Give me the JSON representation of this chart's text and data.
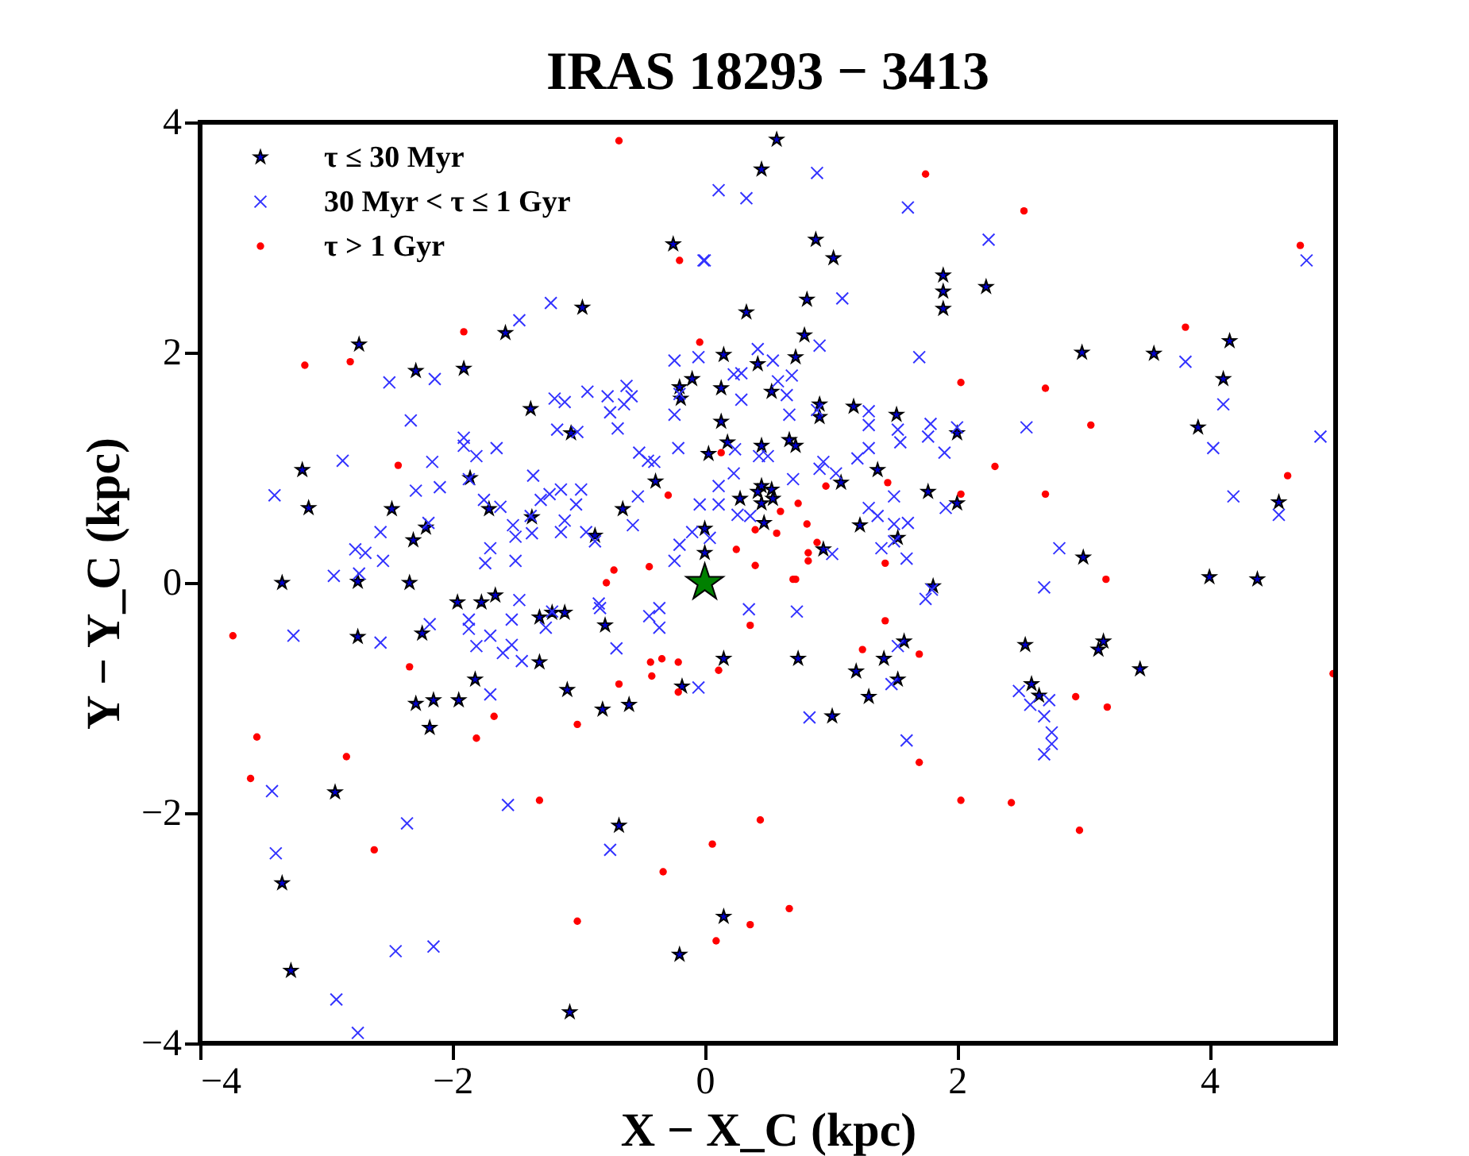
{
  "chart_data": {
    "type": "scatter",
    "title": "IRAS 18293 − 3413",
    "xlabel": "X − X_C (kpc)",
    "ylabel": "Y − Y_C (kpc)",
    "xlim": [
      -4,
      5
    ],
    "ylim": [
      -4,
      4
    ],
    "xticks": [
      {
        "value": -4,
        "label": "−4"
      },
      {
        "value": -2,
        "label": "−2"
      },
      0,
      2,
      4
    ],
    "yticks": [
      {
        "value": -4,
        "label": "−4"
      },
      {
        "value": -2,
        "label": "−2"
      },
      0,
      2,
      4
    ],
    "grid": false,
    "legend": "top left",
    "series": [
      {
        "name": "τ ≤ 30 Myr",
        "color": "#0000cc",
        "marker": "star",
        "x": [
          0.57,
          0.45,
          -0.25,
          0.88,
          1.02,
          0.81,
          0.79,
          1.89,
          1.89,
          1.89,
          2.23,
          2.99,
          3.56,
          4.16,
          4.11,
          3.91,
          4.55,
          4.0,
          4.38,
          -2.74,
          -1.58,
          -1.91,
          -2.29,
          -3.19,
          -3.14,
          -2.48,
          -2.21,
          -2.31,
          -0.97,
          -1.38,
          -1.06,
          -1.86,
          -1.71,
          -1.37,
          -0.87,
          -0.65,
          -0.39,
          -0.2,
          -0.1,
          -0.19,
          0.03,
          0.18,
          0.15,
          0.33,
          0.45,
          0.91,
          0.94,
          1.37,
          1.53,
          2.0,
          1.81,
          3.0,
          3.16,
          3.12,
          3.45,
          -3.35,
          -2.75,
          -2.34,
          -1.77,
          -1.96,
          -1.66,
          -1.21,
          -1.31,
          -1.11,
          -0.79,
          -2.24,
          -2.75,
          -1.09,
          -1.31,
          -1.82,
          -1.95,
          -2.18,
          -2.15,
          -2.29,
          -0.81,
          -0.6,
          -0.18,
          0.15,
          0.74,
          1.01,
          1.2,
          1.3,
          1.42,
          1.58,
          1.53,
          2.54,
          2.59,
          2.65,
          -2.93,
          -3.35,
          -3.28,
          -0.68,
          -0.2,
          0.15,
          -1.07,
          0.45,
          0.53,
          0.42,
          0.28,
          0.45,
          0.54,
          0.47,
          0.0,
          0.0,
          0.13,
          0.13,
          0.42,
          0.72,
          0.53,
          0.91,
          1.18,
          1.52,
          0.67,
          0.72,
          1.08,
          1.23,
          1.77,
          2.0
        ],
        "values": [
          3.85,
          3.59,
          2.94,
          2.98,
          2.82,
          2.46,
          2.15,
          2.67,
          2.53,
          2.38,
          2.57,
          2.0,
          1.99,
          2.1,
          1.77,
          1.35,
          0.7,
          0.05,
          0.03,
          2.07,
          2.17,
          1.86,
          1.84,
          0.98,
          0.65,
          0.64,
          0.48,
          0.37,
          2.39,
          1.51,
          1.3,
          0.91,
          0.64,
          0.57,
          0.41,
          0.64,
          0.88,
          1.7,
          1.77,
          1.6,
          1.12,
          1.22,
          1.98,
          2.35,
          1.19,
          1.44,
          0.29,
          0.98,
          0.39,
          1.3,
          -0.03,
          0.22,
          -0.51,
          -0.58,
          -0.75,
          0.0,
          0.01,
          0.0,
          -0.17,
          -0.17,
          -0.11,
          -0.26,
          -0.3,
          -0.26,
          -0.37,
          -0.44,
          -0.47,
          -0.93,
          -0.69,
          -0.84,
          -1.02,
          -1.26,
          -1.02,
          -1.05,
          -1.1,
          -1.06,
          -0.9,
          -0.66,
          -0.66,
          -1.16,
          -0.77,
          -0.99,
          -0.66,
          -0.51,
          -0.84,
          -0.54,
          -0.88,
          -0.98,
          -1.82,
          -2.61,
          -3.37,
          -2.11,
          -3.23,
          -2.9,
          -3.73,
          0.84,
          0.81,
          0.79,
          0.73,
          0.69,
          0.73,
          0.52,
          0.47,
          0.26,
          1.69,
          1.4,
          1.9,
          1.96,
          1.66,
          1.55,
          1.53,
          1.46,
          1.24,
          1.19,
          0.87,
          0.5,
          0.79,
          0.69
        ]
      },
      {
        "name": "30 Myr < τ ≤ 1 Gyr",
        "color": "#3333ff",
        "marker": "cross",
        "x": [
          0.11,
          0.33,
          0.89,
          1.61,
          2.25,
          0.0,
          1.09,
          0.91,
          1.7,
          0.42,
          0.54,
          0.23,
          0.29,
          0.58,
          0.69,
          0.29,
          0.65,
          0.67,
          0.89,
          1.3,
          1.3,
          1.53,
          1.55,
          1.79,
          1.77,
          2.0,
          1.9,
          2.55,
          0.24,
          0.43,
          0.5,
          0.91,
          0.94,
          0.7,
          1.21,
          1.3,
          1.04,
          0.23,
          0.11,
          0.26,
          0.36,
          0.11,
          0.04,
          1.3,
          1.37,
          1.5,
          1.5,
          1.61,
          1.4,
          1.5,
          1.6,
          1.01,
          1.91,
          2.81,
          3.81,
          4.11,
          4.03,
          4.88,
          4.19,
          4.55,
          4.77,
          -3.41,
          -2.87,
          -2.5,
          -2.33,
          -2.14,
          -1.47,
          -1.22,
          -2.16,
          -2.29,
          -2.1,
          -2.19,
          -2.57,
          -2.77,
          -2.69,
          -2.55,
          -2.94,
          -2.74,
          -1.91,
          -1.81,
          -1.87,
          -1.91,
          -1.65,
          -1.75,
          -1.62,
          -1.7,
          -1.52,
          -1.5,
          -1.38,
          -1.36,
          -1.17,
          -1.01,
          -1.19,
          -1.11,
          -0.93,
          -0.77,
          -0.75,
          -0.64,
          -0.69,
          -0.62,
          -0.58,
          -0.52,
          -0.45,
          -0.4,
          -0.21,
          -0.24,
          -0.2,
          -0.24,
          -0.05,
          -0.01,
          -1.23,
          -1.14,
          -0.98,
          -1.02,
          -1.11,
          -1.3,
          -1.37,
          -1.14,
          -0.94,
          -0.87,
          -0.57,
          -0.53,
          -0.2,
          -0.24,
          -0.1,
          -0.04,
          -1.74,
          -1.5,
          -3.26,
          -2.57,
          -2.18,
          -1.87,
          -1.87,
          -1.81,
          -1.7,
          -1.53,
          -1.6,
          -1.45,
          -1.53,
          -1.47,
          -1.21,
          -1.26,
          -0.84,
          -0.83,
          -0.7,
          -0.44,
          -0.36,
          -0.36,
          -1.7,
          -1.56,
          -2.36,
          -3.43,
          -3.4,
          -2.45,
          -2.15,
          -0.75,
          -2.92,
          -2.75,
          0.35,
          0.73,
          1.75,
          1.8,
          2.69,
          1.53,
          1.48,
          0.83,
          1.6,
          2.49,
          2.58,
          2.73,
          2.69,
          2.75,
          2.75,
          2.69,
          -0.05
        ],
        "values": [
          3.41,
          3.34,
          3.56,
          3.26,
          2.98,
          2.8,
          2.47,
          2.06,
          1.96,
          2.03,
          1.93,
          1.81,
          1.82,
          1.75,
          1.8,
          1.59,
          1.63,
          1.46,
          1.5,
          1.49,
          1.37,
          1.33,
          1.22,
          1.38,
          1.27,
          1.35,
          1.13,
          1.35,
          1.16,
          1.1,
          1.1,
          0.99,
          1.05,
          0.9,
          1.08,
          1.17,
          0.95,
          0.95,
          0.84,
          0.59,
          0.58,
          0.68,
          0.39,
          0.65,
          0.58,
          0.75,
          0.51,
          0.52,
          0.3,
          0.36,
          0.21,
          0.25,
          0.65,
          0.3,
          1.92,
          1.55,
          1.17,
          1.27,
          0.75,
          0.59,
          2.8,
          0.76,
          1.06,
          1.74,
          1.41,
          1.77,
          2.28,
          2.43,
          1.05,
          0.8,
          0.83,
          0.52,
          0.44,
          0.29,
          0.26,
          0.19,
          0.06,
          0.08,
          1.26,
          1.1,
          0.9,
          1.19,
          1.17,
          0.72,
          0.66,
          0.3,
          0.5,
          0.19,
          0.58,
          0.93,
          1.33,
          1.31,
          1.6,
          1.57,
          1.66,
          1.62,
          1.48,
          1.55,
          1.34,
          1.71,
          1.62,
          1.13,
          1.06,
          1.05,
          1.17,
          1.46,
          1.64,
          1.93,
          1.96,
          2.8,
          0.77,
          0.81,
          0.81,
          0.68,
          0.54,
          0.72,
          0.43,
          0.44,
          0.44,
          0.36,
          0.5,
          0.75,
          0.33,
          0.19,
          0.44,
          0.68,
          0.17,
          0.4,
          -0.46,
          -0.52,
          -0.36,
          -0.32,
          -0.4,
          -0.55,
          -0.46,
          -0.54,
          -0.61,
          -0.68,
          -0.32,
          -0.15,
          -0.25,
          -0.39,
          -0.18,
          -0.22,
          -0.57,
          -0.29,
          -0.22,
          -0.39,
          -0.97,
          -1.93,
          -2.09,
          -1.81,
          -2.35,
          -3.2,
          -3.16,
          -2.32,
          -3.62,
          -3.91,
          -0.23,
          -0.25,
          -0.14,
          -0.06,
          -0.04,
          -0.55,
          -0.88,
          -1.17,
          -1.37,
          -0.94,
          -1.06,
          -1.02,
          -1.16,
          -1.3,
          -1.4,
          -1.49,
          -0.91
        ]
      },
      {
        "name": "τ > 1 Gyr",
        "color": "#ff0000",
        "marker": "circle",
        "x": [
          -0.68,
          1.75,
          2.53,
          4.72,
          3.81,
          -0.2,
          -0.04,
          -1.91,
          -3.17,
          -2.81,
          -2.43,
          -0.29,
          2.03,
          2.7,
          3.06,
          2.3,
          2.7,
          2.03,
          4.62,
          0.13,
          0.96,
          1.45,
          0.74,
          0.6,
          0.81,
          0.4,
          0.57,
          0.89,
          0.82,
          0.82,
          0.25,
          0.4,
          1.43,
          0.72,
          3.18,
          -0.72,
          -0.44,
          -0.78,
          -3.74,
          -2.34,
          -3.55,
          -3.6,
          -2.84,
          -2.62,
          -1.67,
          -1.81,
          -1.01,
          -1.31,
          -0.68,
          -0.43,
          -0.34,
          -0.21,
          -0.42,
          -0.21,
          -1.01,
          -0.33,
          0.7,
          0.36,
          0.11,
          1.25,
          1.43,
          1.7,
          1.7,
          2.03,
          2.43,
          2.94,
          3.19,
          2.97,
          4.98,
          0.44,
          0.06,
          0.67,
          0.36,
          0.09
        ],
        "values": [
          3.84,
          3.55,
          3.23,
          2.93,
          2.22,
          2.8,
          2.09,
          2.18,
          1.89,
          1.92,
          1.02,
          0.76,
          1.74,
          1.69,
          1.37,
          1.01,
          0.77,
          0.77,
          0.93,
          1.13,
          0.84,
          0.87,
          0.69,
          0.62,
          0.51,
          0.46,
          0.43,
          0.35,
          0.26,
          0.19,
          0.29,
          0.15,
          0.17,
          0.03,
          0.03,
          0.11,
          0.14,
          0.0,
          -0.46,
          -0.73,
          -1.34,
          -1.7,
          -1.51,
          -2.32,
          -1.16,
          -1.35,
          -1.23,
          -1.89,
          -0.88,
          -0.69,
          -0.66,
          -0.69,
          -0.81,
          -0.95,
          -2.94,
          -2.51,
          0.03,
          -0.37,
          -0.76,
          -0.58,
          -0.33,
          -0.62,
          -1.56,
          -1.89,
          -1.91,
          -0.99,
          -1.08,
          -2.15,
          -0.79,
          -2.06,
          -2.27,
          -2.83,
          -2.97,
          -3.11
        ]
      },
      {
        "color": "#008000",
        "marker": "star",
        "x": [
          0
        ],
        "values": [
          0
        ]
      }
    ]
  }
}
